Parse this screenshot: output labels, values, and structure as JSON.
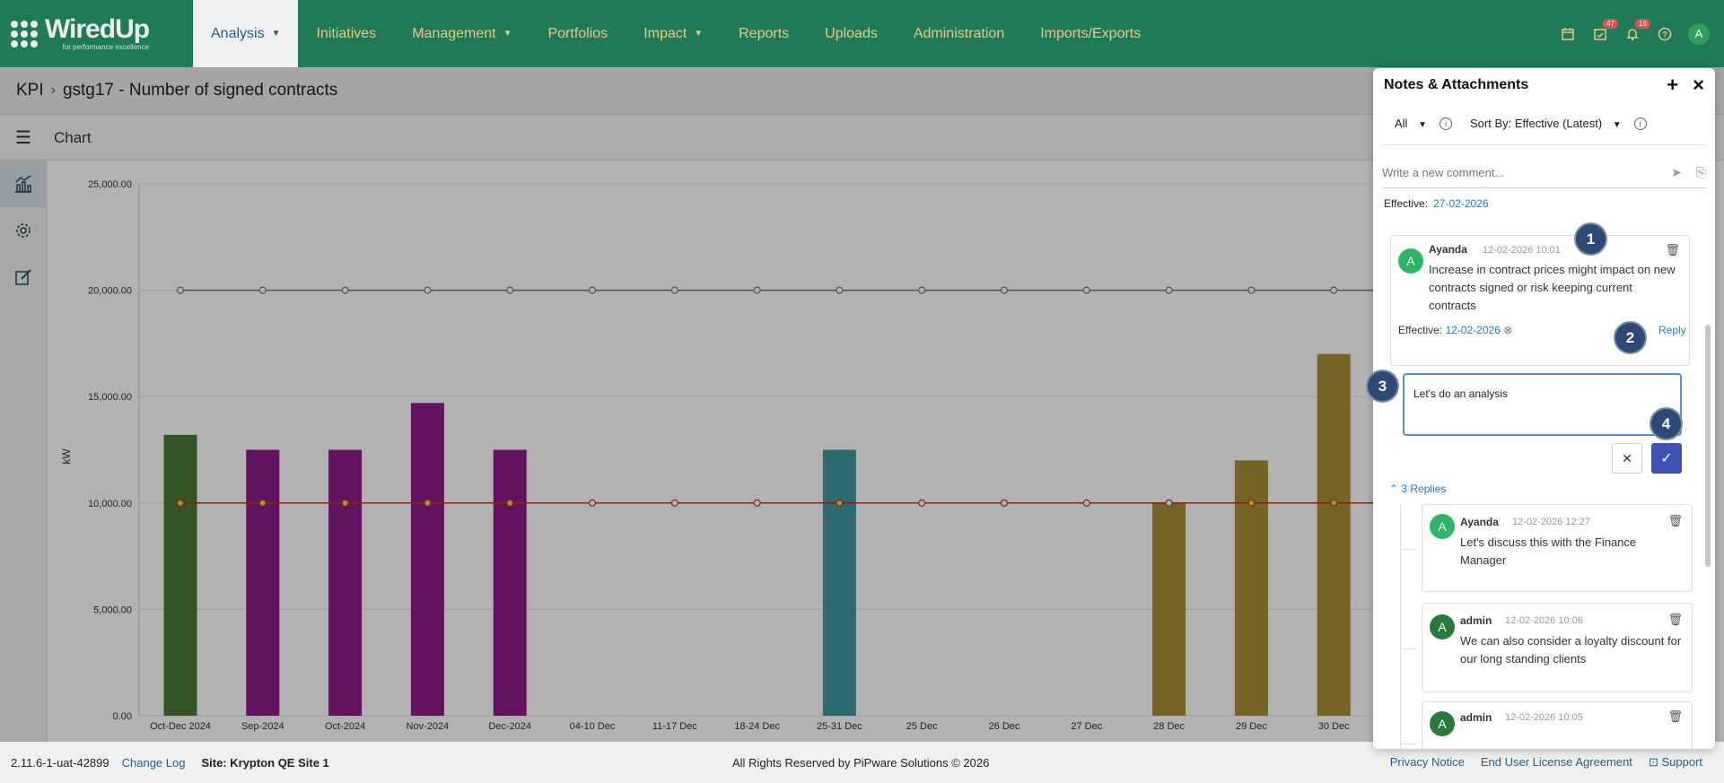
{
  "brand": {
    "name": "WiredUp",
    "tagline": "for performance excellence"
  },
  "nav": {
    "items": [
      {
        "label": "Analysis",
        "caret": true,
        "active": true
      },
      {
        "label": "Initiatives",
        "caret": false
      },
      {
        "label": "Management",
        "caret": true
      },
      {
        "label": "Portfolios",
        "caret": false
      },
      {
        "label": "Impact",
        "caret": true
      },
      {
        "label": "Reports",
        "caret": false
      },
      {
        "label": "Uploads",
        "caret": false
      },
      {
        "label": "Administration",
        "caret": false
      },
      {
        "label": "Imports/Exports",
        "caret": false
      }
    ],
    "calendar_icon": "calendar-icon",
    "tasks_badge": "47",
    "notifications_badge": "16",
    "help_icon": "help-icon",
    "user_initial": "A"
  },
  "breadcrumb": {
    "root": "KPI",
    "current": "gstg17 - Number of signed contracts"
  },
  "toolbar": {
    "title": "Chart"
  },
  "chart_data": {
    "type": "bar",
    "ylabel": "kW",
    "ylim": [
      0,
      25000
    ],
    "yticks": [
      "0.00",
      "5,000.00",
      "10,000.00",
      "15,000.00",
      "20,000.00",
      "25,000.00"
    ],
    "categories": [
      "Oct-Dec 2024",
      "Sep-2024",
      "Oct-2024",
      "Nov-2024",
      "Dec-2024",
      "04-10 Dec",
      "11-17 Dec",
      "18-24 Dec",
      "25-31 Dec",
      "25 Dec",
      "26 Dec",
      "27 Dec",
      "28 Dec",
      "29 Dec",
      "30 Dec"
    ],
    "values": [
      13200,
      12500,
      12500,
      14700,
      12500,
      null,
      null,
      null,
      12500,
      null,
      null,
      null,
      10000,
      12000,
      17000
    ],
    "bar_colors": [
      "#4a7a35",
      "#8e1a8a",
      "#8e1a8a",
      "#8e1a8a",
      "#8e1a8a",
      null,
      null,
      null,
      "#3e9aa0",
      null,
      null,
      null,
      "#a88f3a",
      "#a88f3a",
      "#a88f3a"
    ],
    "lines": [
      {
        "value": 20000,
        "color": "#777777"
      },
      {
        "value": 10000,
        "color": "#b33a1e"
      }
    ]
  },
  "panel": {
    "title": "Notes & Attachments",
    "filter": "All",
    "sort": "Sort By: Effective (Latest)",
    "comment_placeholder": "Write a new comment...",
    "effective_label": "Effective:",
    "effective_date": "27-02-2026",
    "note": {
      "author": "Ayanda",
      "time": "12-02-2026 10:01",
      "avatar": "A",
      "body": "Increase in contract prices might impact on new contracts signed or risk keeping current contracts",
      "effective_label": "Effective:",
      "effective_date": "12-02-2026",
      "reply_label": "Reply"
    },
    "reply_input": "Let's do an analysis",
    "replies_label": "3 Replies",
    "replies": [
      {
        "author": "Ayanda",
        "time": "12-02-2026 12:27",
        "avatar": "A",
        "body": "Let's discuss this with the Finance Manager"
      },
      {
        "author": "admin",
        "time": "12-02-2026 10:06",
        "avatar": "A",
        "body": "We can also consider a loyalty discount for our long standing clients"
      },
      {
        "author": "admin",
        "time": "12-02-2026 10:05",
        "avatar": "A",
        "body": ""
      }
    ]
  },
  "markers": [
    "1",
    "2",
    "3",
    "4"
  ],
  "footer": {
    "version": "2.11.6-1-uat-42899",
    "changelog": "Change Log",
    "site": "Site: Krypton QE Site 1",
    "rights": "All Rights Reserved by PiPware Solutions © 2026",
    "privacy": "Privacy Notice",
    "eula": "End User License Agreement",
    "support": "Support"
  }
}
